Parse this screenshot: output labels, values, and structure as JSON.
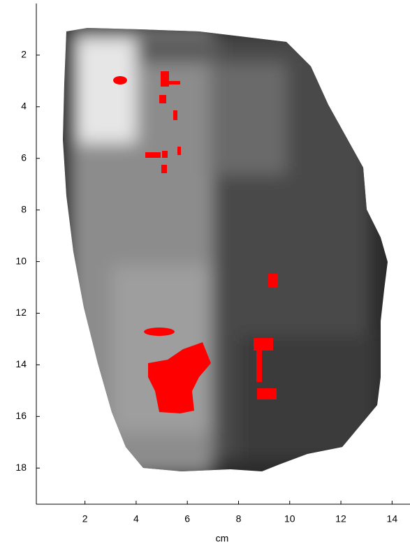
{
  "chart_data": {
    "type": "image",
    "xlabel": "cm",
    "xlim": [
      0.1,
      14.7
    ],
    "ylim": [
      0,
      19.4
    ],
    "y_inverted": true,
    "xticks": [
      2,
      4,
      6,
      8,
      10,
      12,
      14
    ],
    "yticks": [
      2,
      4,
      6,
      8,
      10,
      12,
      14,
      16,
      18
    ]
  }
}
